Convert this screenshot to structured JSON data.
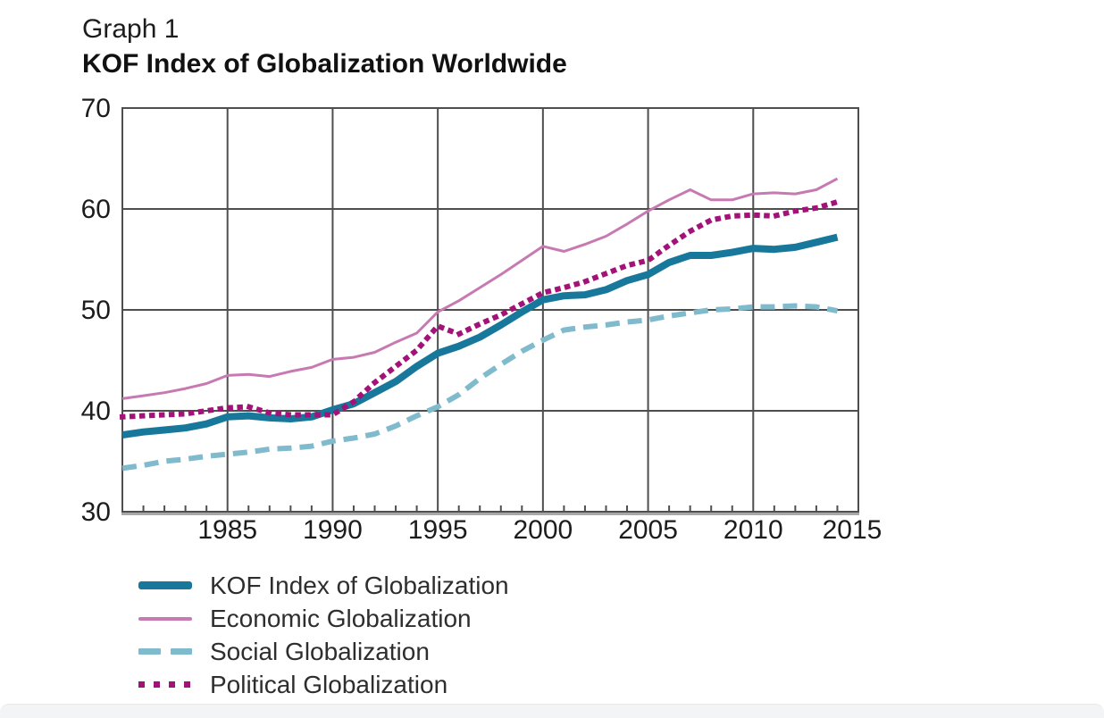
{
  "header": {
    "eyebrow": "Graph 1",
    "title": "KOF Index of Globalization Worldwide"
  },
  "chart_data": {
    "type": "line",
    "title": "KOF Index of Globalization Worldwide",
    "xlim": [
      1980,
      2015
    ],
    "ylim": [
      30,
      70
    ],
    "x_ticks_major": [
      1985,
      1990,
      1995,
      2000,
      2005,
      2010,
      2015
    ],
    "y_ticks": [
      30,
      40,
      50,
      60,
      70
    ],
    "grid": true,
    "legend_position": "bottom-left",
    "years": [
      1980,
      1981,
      1982,
      1983,
      1984,
      1985,
      1986,
      1987,
      1988,
      1989,
      1990,
      1991,
      1992,
      1993,
      1994,
      1995,
      1996,
      1997,
      1998,
      1999,
      2000,
      2001,
      2002,
      2003,
      2004,
      2005,
      2006,
      2007,
      2008,
      2009,
      2010,
      2011,
      2012,
      2013,
      2014
    ],
    "series": [
      {
        "name": "KOF Index of Globalization",
        "color": "#17789b",
        "style": "solid-thick",
        "values": [
          37.6,
          37.9,
          38.1,
          38.3,
          38.7,
          39.4,
          39.5,
          39.3,
          39.2,
          39.4,
          40.1,
          40.7,
          41.8,
          42.9,
          44.4,
          45.7,
          46.4,
          47.3,
          48.5,
          49.8,
          51.0,
          51.4,
          51.5,
          52.0,
          52.9,
          53.5,
          54.7,
          55.4,
          55.4,
          55.7,
          56.1,
          56.0,
          56.2,
          56.7,
          57.2
        ]
      },
      {
        "name": "Economic Globalization",
        "color": "#c77ab2",
        "style": "solid-thin",
        "values": [
          41.2,
          41.5,
          41.8,
          42.2,
          42.7,
          43.5,
          43.6,
          43.4,
          43.9,
          44.3,
          45.1,
          45.3,
          45.8,
          46.8,
          47.7,
          49.8,
          50.9,
          52.2,
          53.5,
          54.9,
          56.3,
          55.8,
          56.5,
          57.3,
          58.5,
          59.8,
          60.9,
          61.9,
          60.9,
          60.9,
          61.5,
          61.6,
          61.5,
          61.9,
          63.0
        ]
      },
      {
        "name": "Social Globalization",
        "color": "#7fbbcd",
        "style": "dashed",
        "values": [
          34.3,
          34.6,
          35.0,
          35.2,
          35.5,
          35.7,
          35.9,
          36.2,
          36.3,
          36.5,
          37.0,
          37.3,
          37.7,
          38.5,
          39.5,
          40.4,
          41.6,
          43.2,
          44.6,
          45.9,
          47.0,
          48.0,
          48.3,
          48.5,
          48.8,
          49.0,
          49.4,
          49.7,
          50.0,
          50.1,
          50.3,
          50.3,
          50.4,
          50.3,
          49.9
        ]
      },
      {
        "name": "Political Globalization",
        "color": "#a31278",
        "style": "dotted",
        "values": [
          39.4,
          39.5,
          39.6,
          39.7,
          40.0,
          40.3,
          40.4,
          39.8,
          39.6,
          39.6,
          39.6,
          40.9,
          42.8,
          44.4,
          46.0,
          48.4,
          47.6,
          48.6,
          49.5,
          50.6,
          51.7,
          52.2,
          52.8,
          53.6,
          54.4,
          54.9,
          56.4,
          57.8,
          58.9,
          59.3,
          59.4,
          59.3,
          59.8,
          60.1,
          60.7
        ]
      }
    ]
  },
  "style": {
    "grid_color": "#4e4e4e",
    "axis_shadow_color": "#9a9a9a",
    "tick_label_color": "#1c1c1c"
  }
}
